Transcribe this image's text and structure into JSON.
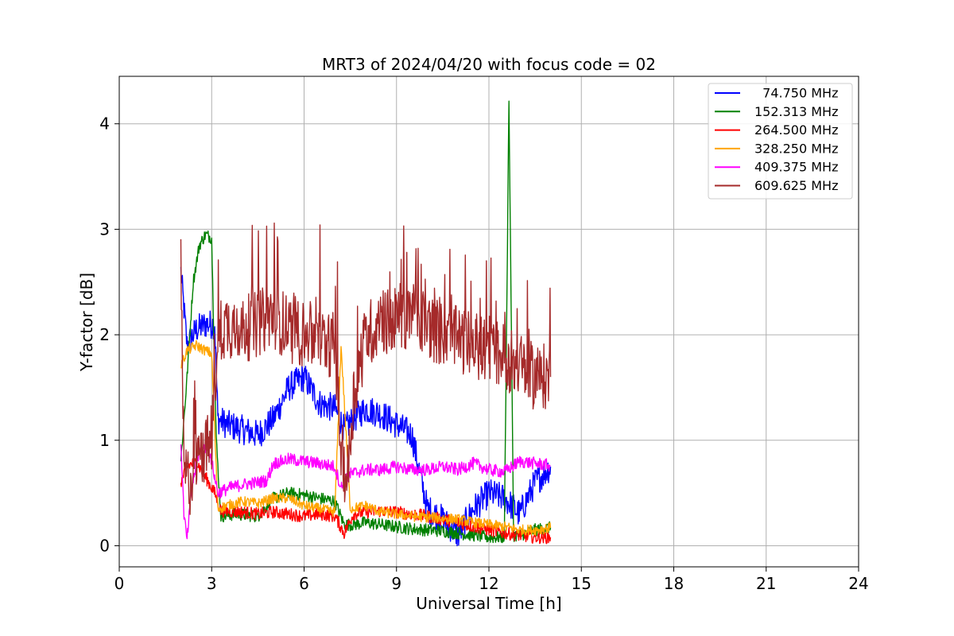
{
  "chart_data": {
    "type": "line",
    "title": "MRT3 of 2024/04/20 with focus code = 02",
    "xlabel": "Universal Time [h]",
    "ylabel": "Y-factor [dB]",
    "xlim": [
      0,
      24
    ],
    "ylim": [
      -0.2,
      4.45
    ],
    "xticks": [
      0,
      3,
      6,
      9,
      12,
      15,
      18,
      21,
      24
    ],
    "yticks": [
      0,
      1,
      2,
      3,
      4
    ],
    "grid": true,
    "legend_position": "top-right",
    "series": [
      {
        "name": "  74.750 MHz",
        "color": "#0000ff",
        "x": [
          2.0,
          2.2,
          2.5,
          2.8,
          3.1,
          3.2,
          3.5,
          4.0,
          4.5,
          5.0,
          5.5,
          6.0,
          6.5,
          7.0,
          7.3,
          7.6,
          8.0,
          8.5,
          9.0,
          9.5,
          10.0,
          10.5,
          11.0,
          11.5,
          12.0,
          12.5,
          13.0,
          13.5,
          14.0
        ],
        "y": [
          2.6,
          1.9,
          2.05,
          2.1,
          2.1,
          1.2,
          1.15,
          1.1,
          1.05,
          1.2,
          1.5,
          1.6,
          1.35,
          1.3,
          1.1,
          1.2,
          1.3,
          1.25,
          1.15,
          1.05,
          0.35,
          0.25,
          0.1,
          0.35,
          0.5,
          0.45,
          0.3,
          0.6,
          0.75
        ],
        "noise": 0.14
      },
      {
        "name": "152.313 MHz",
        "color": "#008000",
        "x": [
          2.0,
          2.2,
          2.4,
          2.6,
          2.8,
          3.0,
          3.15,
          3.3,
          3.8,
          4.5,
          5.0,
          5.5,
          6.0,
          6.5,
          7.0,
          7.3,
          7.6,
          8.0,
          8.5,
          9.0,
          9.5,
          10.0,
          10.5,
          11.0,
          11.5,
          12.0,
          12.5,
          12.65,
          12.8,
          13.0,
          13.5,
          14.0
        ],
        "y": [
          0.8,
          1.6,
          2.5,
          2.85,
          2.95,
          2.92,
          1.0,
          0.28,
          0.3,
          0.28,
          0.45,
          0.5,
          0.48,
          0.45,
          0.42,
          0.2,
          0.2,
          0.22,
          0.2,
          0.18,
          0.16,
          0.15,
          0.14,
          0.12,
          0.1,
          0.08,
          0.08,
          4.23,
          0.1,
          0.1,
          0.15,
          0.17
        ],
        "noise": 0.06
      },
      {
        "name": "264.500 MHz",
        "color": "#ff0000",
        "x": [
          2.0,
          2.2,
          2.5,
          2.8,
          3.1,
          3.3,
          4.0,
          4.5,
          5.0,
          5.5,
          6.0,
          6.5,
          7.0,
          7.3,
          7.6,
          8.0,
          8.5,
          9.0,
          9.5,
          10.0,
          10.5,
          11.0,
          11.5,
          12.0,
          12.5,
          13.0,
          13.5,
          14.0
        ],
        "y": [
          0.6,
          0.75,
          0.8,
          0.65,
          0.5,
          0.33,
          0.32,
          0.3,
          0.32,
          0.3,
          0.28,
          0.3,
          0.28,
          0.12,
          0.3,
          0.32,
          0.33,
          0.32,
          0.3,
          0.28,
          0.25,
          0.22,
          0.18,
          0.15,
          0.12,
          0.1,
          0.08,
          0.08
        ],
        "noise": 0.06
      },
      {
        "name": "328.250 MHz",
        "color": "#ffa500",
        "x": [
          2.0,
          2.2,
          2.5,
          2.8,
          3.0,
          3.2,
          3.5,
          4.0,
          4.5,
          5.0,
          5.5,
          6.0,
          6.5,
          7.0,
          7.2,
          7.5,
          8.0,
          8.5,
          9.0,
          9.5,
          10.0,
          10.5,
          11.0,
          11.5,
          12.0,
          12.5,
          13.0,
          13.5,
          14.0
        ],
        "y": [
          1.7,
          1.85,
          1.9,
          1.85,
          1.82,
          0.35,
          0.38,
          0.42,
          0.4,
          0.45,
          0.45,
          0.38,
          0.35,
          0.32,
          1.9,
          0.35,
          0.38,
          0.32,
          0.3,
          0.28,
          0.27,
          0.26,
          0.25,
          0.22,
          0.2,
          0.18,
          0.15,
          0.15,
          0.17
        ],
        "noise": 0.05
      },
      {
        "name": "409.375 MHz",
        "color": "#ff00ff",
        "x": [
          2.0,
          2.1,
          2.2,
          2.35,
          2.6,
          2.9,
          3.2,
          3.6,
          4.0,
          4.5,
          4.8,
          5.0,
          5.5,
          6.0,
          6.5,
          7.0,
          7.2,
          7.5,
          8.0,
          8.5,
          9.0,
          9.5,
          10.0,
          10.5,
          11.0,
          11.5,
          12.0,
          12.5,
          13.0,
          13.5,
          14.0
        ],
        "y": [
          1.0,
          0.3,
          0.05,
          0.55,
          0.9,
          0.95,
          0.5,
          0.55,
          0.58,
          0.6,
          0.62,
          0.78,
          0.82,
          0.8,
          0.78,
          0.75,
          0.55,
          0.68,
          0.72,
          0.72,
          0.75,
          0.72,
          0.72,
          0.75,
          0.72,
          0.78,
          0.72,
          0.7,
          0.8,
          0.78,
          0.76
        ],
        "noise": 0.06
      },
      {
        "name": "609.625 MHz",
        "color": "#a52a2a",
        "x": [
          2.0,
          2.1,
          2.3,
          2.5,
          2.8,
          3.0,
          3.2,
          3.5,
          4.0,
          4.5,
          5.0,
          5.5,
          6.0,
          6.5,
          7.0,
          7.2,
          7.4,
          7.6,
          8.0,
          8.5,
          9.0,
          9.5,
          10.0,
          10.5,
          11.0,
          11.5,
          12.0,
          12.5,
          13.0,
          13.5,
          14.0
        ],
        "y": [
          2.6,
          0.7,
          0.6,
          0.8,
          0.9,
          1.0,
          2.0,
          2.1,
          2.05,
          2.1,
          2.2,
          2.05,
          2.0,
          1.95,
          1.9,
          0.9,
          0.6,
          1.4,
          2.0,
          2.1,
          2.15,
          2.2,
          2.1,
          2.0,
          1.95,
          1.9,
          1.85,
          1.8,
          1.7,
          1.6,
          1.6
        ],
        "noise": 0.32
      }
    ]
  }
}
